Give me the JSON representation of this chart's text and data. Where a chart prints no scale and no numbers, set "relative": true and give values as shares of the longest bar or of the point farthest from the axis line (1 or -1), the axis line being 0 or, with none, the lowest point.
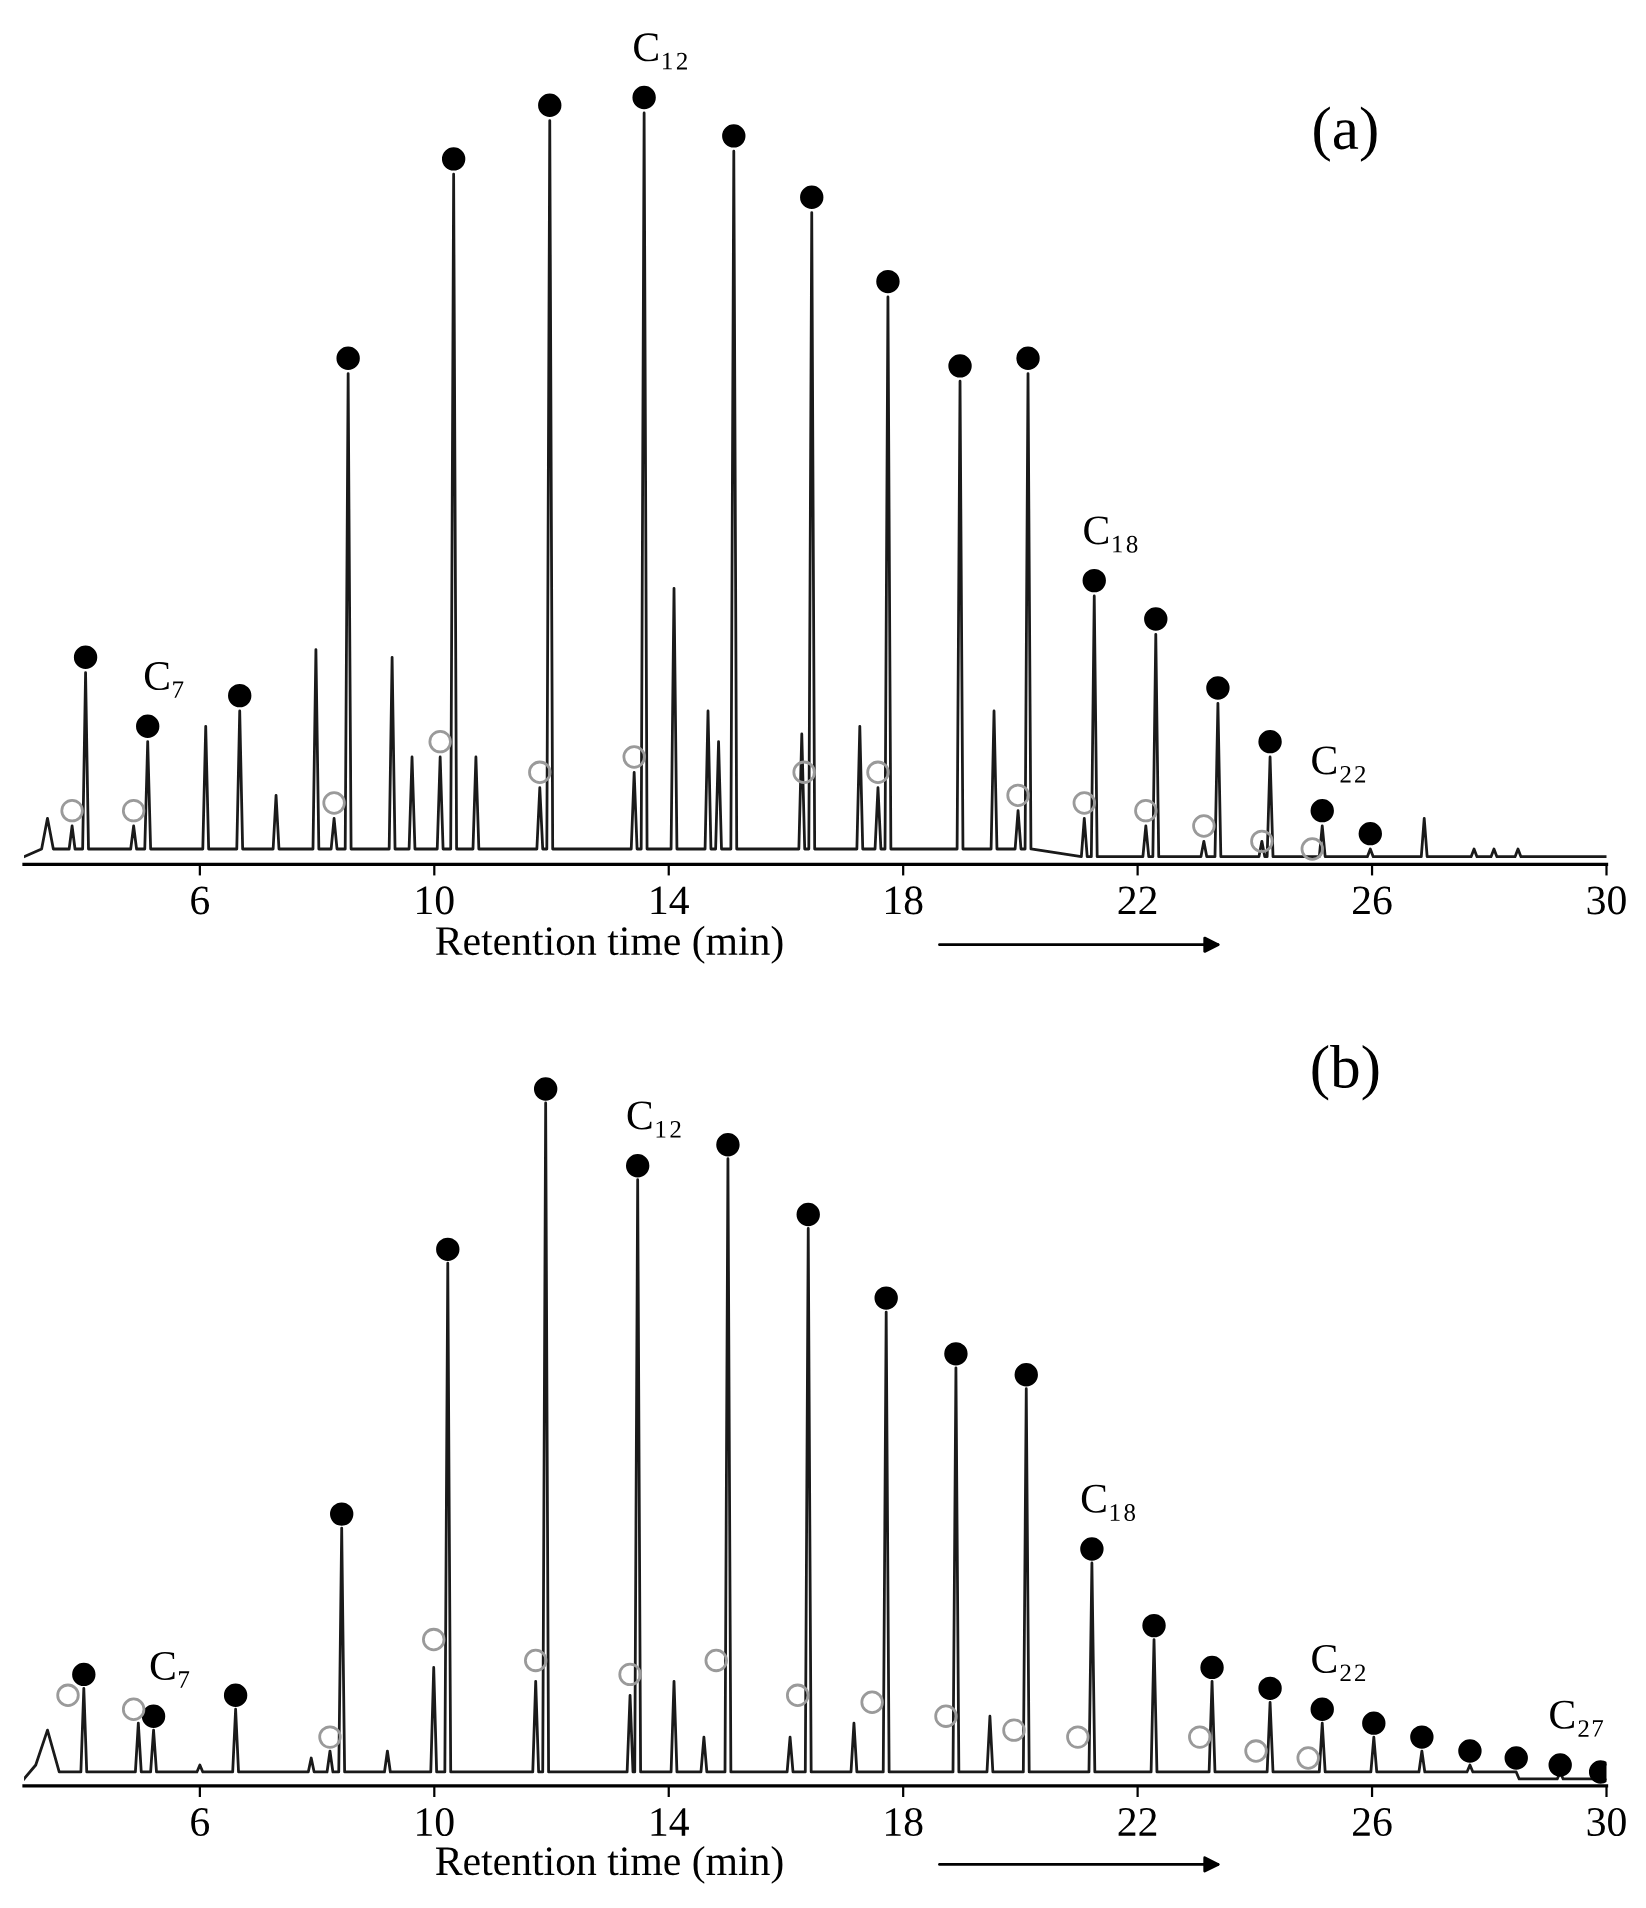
{
  "chart_data": [
    {
      "type": "line",
      "title": "(a)",
      "xlabel": "Retention time (min)",
      "relative": true,
      "xlim": [
        3,
        30
      ],
      "xticks": [
        6,
        10,
        14,
        18,
        22,
        26,
        30
      ],
      "tick_labels": "x",
      "legend": false,
      "grid": false,
      "series": [
        {
          "color": "#1a1a1a",
          "marker": "none",
          "line_style": "solid",
          "x": [
            3.0,
            3.3,
            3.4,
            3.5,
            3.77,
            3.82,
            3.87,
            4.0,
            4.05,
            4.1,
            4.82,
            4.87,
            4.92,
            5.06,
            5.11,
            5.16,
            6.05,
            6.1,
            6.15,
            6.63,
            6.68,
            6.73,
            7.25,
            7.3,
            7.35,
            7.93,
            7.98,
            8.03,
            8.24,
            8.29,
            8.34,
            8.48,
            8.53,
            8.58,
            9.23,
            9.28,
            9.33,
            9.57,
            9.62,
            9.67,
            10.05,
            10.1,
            10.15,
            10.28,
            10.33,
            10.38,
            10.66,
            10.71,
            10.76,
            11.75,
            11.8,
            11.85,
            11.92,
            11.97,
            12.02,
            13.36,
            13.41,
            13.46,
            13.53,
            13.58,
            13.63,
            14.04,
            14.09,
            14.14,
            14.62,
            14.67,
            14.72,
            14.8,
            14.85,
            14.9,
            15.06,
            15.11,
            15.16,
            16.22,
            16.27,
            16.32,
            16.39,
            16.44,
            16.49,
            17.21,
            17.26,
            17.31,
            17.52,
            17.57,
            17.62,
            17.69,
            17.74,
            17.79,
            18.92,
            18.97,
            19.02,
            19.5,
            19.55,
            19.6,
            19.91,
            19.96,
            20.01,
            20.08,
            20.13,
            20.18,
            21.04,
            21.09,
            21.14,
            21.21,
            21.26,
            21.31,
            22.09,
            22.14,
            22.19,
            22.26,
            22.31,
            22.36,
            23.08,
            23.13,
            23.18,
            23.32,
            23.37,
            23.42,
            24.07,
            24.12,
            24.17,
            24.21,
            24.26,
            24.31,
            25.1,
            25.15,
            25.2,
            25.92,
            25.97,
            26.02,
            26.84,
            26.89,
            26.94,
            27.69,
            27.74,
            27.79,
            28.03,
            28.08,
            28.13,
            28.44,
            28.49,
            28.54,
            30.0
          ],
          "values": [
            0.01,
            0.02,
            0.06,
            0.02,
            0.02,
            0.05,
            0.02,
            0.02,
            0.25,
            0.02,
            0.02,
            0.05,
            0.02,
            0.02,
            0.16,
            0.02,
            0.02,
            0.18,
            0.02,
            0.02,
            0.2,
            0.02,
            0.02,
            0.09,
            0.02,
            0.02,
            0.28,
            0.02,
            0.02,
            0.06,
            0.02,
            0.02,
            0.64,
            0.02,
            0.02,
            0.27,
            0.02,
            0.02,
            0.14,
            0.02,
            0.02,
            0.14,
            0.02,
            0.02,
            0.9,
            0.02,
            0.02,
            0.14,
            0.02,
            0.02,
            0.1,
            0.02,
            0.02,
            0.97,
            0.02,
            0.02,
            0.12,
            0.02,
            0.02,
            0.98,
            0.02,
            0.02,
            0.36,
            0.02,
            0.02,
            0.2,
            0.02,
            0.02,
            0.16,
            0.02,
            0.02,
            0.93,
            0.02,
            0.02,
            0.17,
            0.02,
            0.02,
            0.85,
            0.02,
            0.02,
            0.18,
            0.02,
            0.02,
            0.1,
            0.02,
            0.02,
            0.74,
            0.02,
            0.02,
            0.63,
            0.02,
            0.02,
            0.2,
            0.02,
            0.02,
            0.07,
            0.02,
            0.02,
            0.64,
            0.02,
            0.01,
            0.06,
            0.01,
            0.01,
            0.35,
            0.01,
            0.01,
            0.05,
            0.01,
            0.01,
            0.3,
            0.01,
            0.01,
            0.03,
            0.01,
            0.01,
            0.21,
            0.01,
            0.01,
            0.03,
            0.01,
            0.01,
            0.14,
            0.01,
            0.01,
            0.05,
            0.01,
            0.01,
            0.02,
            0.01,
            0.01,
            0.06,
            0.01,
            0.01,
            0.02,
            0.01,
            0.01,
            0.02,
            0.01,
            0.01,
            0.02,
            0.01,
            0.01
          ]
        },
        {
          "type": "scatter",
          "color": "#000000",
          "marker": "circle",
          "x": [
            4.05,
            5.11,
            6.68,
            8.53,
            10.33,
            11.97,
            13.58,
            15.11,
            16.44,
            17.74,
            18.97,
            20.13,
            21.26,
            22.31,
            23.37,
            24.26,
            25.15,
            25.97
          ],
          "values": [
            0.27,
            0.18,
            0.22,
            0.66,
            0.92,
            0.99,
            1.0,
            0.95,
            0.87,
            0.76,
            0.65,
            0.66,
            0.37,
            0.32,
            0.23,
            0.16,
            0.07,
            0.04
          ]
        },
        {
          "type": "scatter",
          "color": "#9a9a9a",
          "marker": "circle",
          "x": [
            3.82,
            4.87,
            8.29,
            10.1,
            11.8,
            13.41,
            16.31,
            17.57,
            19.96,
            21.09,
            22.14,
            23.13,
            24.12,
            24.98
          ],
          "values": [
            0.07,
            0.07,
            0.08,
            0.16,
            0.12,
            0.14,
            0.12,
            0.12,
            0.09,
            0.08,
            0.07,
            0.05,
            0.03,
            0.02
          ]
        }
      ],
      "annotations": [
        {
          "text": "C₇",
          "x": 5.11,
          "y": 0.18
        },
        {
          "text": "C₁₂",
          "x": 13.58,
          "y": 1.0
        },
        {
          "text": "C₁₈",
          "x": 21.26,
          "y": 0.37
        },
        {
          "text": "C₂₂",
          "x": 25.15,
          "y": 0.07
        }
      ]
    },
    {
      "type": "line",
      "title": "(b)",
      "xlabel": "Retention time (min)",
      "relative": true,
      "xlim": [
        3,
        30
      ],
      "xticks": [
        6,
        10,
        14,
        18,
        22,
        26,
        30
      ],
      "tick_labels": "x",
      "legend": false,
      "grid": false,
      "series": [
        {
          "color": "#1a1a1a",
          "marker": "none",
          "line_style": "solid",
          "x": [
            3.0,
            3.2,
            3.4,
            3.6,
            3.97,
            4.02,
            4.07,
            4.9,
            4.95,
            5.0,
            5.16,
            5.21,
            5.26,
            5.95,
            6.0,
            6.05,
            6.56,
            6.61,
            6.66,
            7.85,
            7.9,
            7.95,
            8.17,
            8.22,
            8.27,
            8.37,
            8.42,
            8.47,
            9.15,
            9.2,
            9.25,
            9.94,
            9.99,
            10.04,
            10.18,
            10.23,
            10.28,
            11.68,
            11.73,
            11.78,
            11.85,
            11.9,
            11.95,
            13.29,
            13.34,
            13.39,
            13.42,
            13.47,
            13.52,
            14.04,
            14.09,
            14.14,
            14.55,
            14.6,
            14.65,
            14.96,
            15.01,
            15.06,
            16.02,
            16.07,
            16.12,
            16.33,
            16.38,
            16.43,
            17.11,
            17.16,
            17.21,
            17.66,
            17.71,
            17.76,
            18.85,
            18.9,
            18.95,
            19.43,
            19.48,
            19.53,
            20.05,
            20.1,
            20.15,
            21.17,
            21.22,
            21.27,
            22.23,
            22.28,
            22.33,
            23.22,
            23.27,
            23.32,
            24.21,
            24.26,
            24.31,
            25.1,
            25.15,
            25.2,
            25.98,
            26.03,
            26.08,
            26.8,
            26.85,
            26.9,
            27.62,
            27.67,
            27.72,
            28.41,
            28.46,
            28.51,
            29.16,
            29.21,
            29.26,
            29.85,
            29.9,
            29.95
          ],
          "values": [
            0.01,
            0.03,
            0.08,
            0.02,
            0.02,
            0.14,
            0.02,
            0.02,
            0.09,
            0.02,
            0.02,
            0.08,
            0.02,
            0.02,
            0.03,
            0.02,
            0.02,
            0.11,
            0.02,
            0.02,
            0.04,
            0.02,
            0.02,
            0.05,
            0.02,
            0.02,
            0.37,
            0.02,
            0.02,
            0.05,
            0.02,
            0.02,
            0.17,
            0.02,
            0.02,
            0.75,
            0.02,
            0.02,
            0.15,
            0.02,
            0.02,
            0.98,
            0.02,
            0.02,
            0.13,
            0.02,
            0.02,
            0.87,
            0.02,
            0.02,
            0.15,
            0.02,
            0.02,
            0.07,
            0.02,
            0.02,
            0.9,
            0.02,
            0.02,
            0.07,
            0.02,
            0.02,
            0.8,
            0.02,
            0.02,
            0.09,
            0.02,
            0.02,
            0.68,
            0.02,
            0.02,
            0.6,
            0.02,
            0.02,
            0.1,
            0.02,
            0.02,
            0.57,
            0.02,
            0.02,
            0.32,
            0.02,
            0.02,
            0.21,
            0.02,
            0.02,
            0.15,
            0.02,
            0.02,
            0.12,
            0.02,
            0.02,
            0.09,
            0.02,
            0.02,
            0.07,
            0.02,
            0.02,
            0.05,
            0.02,
            0.02,
            0.03,
            0.02,
            0.02,
            0.02,
            0.01,
            0.01,
            0.02,
            0.01,
            0.01,
            0.02,
            0.01
          ]
        },
        {
          "type": "scatter",
          "color": "#000000",
          "marker": "circle",
          "x": [
            4.02,
            5.21,
            6.61,
            8.42,
            10.23,
            11.9,
            13.47,
            15.01,
            16.38,
            17.71,
            18.9,
            20.1,
            21.22,
            22.28,
            23.27,
            24.26,
            25.15,
            26.03,
            26.85,
            27.67,
            28.46,
            29.21,
            29.9
          ],
          "values": [
            0.16,
            0.1,
            0.13,
            0.39,
            0.77,
            1.0,
            0.89,
            0.92,
            0.82,
            0.7,
            0.62,
            0.59,
            0.34,
            0.23,
            0.17,
            0.14,
            0.11,
            0.09,
            0.07,
            0.05,
            0.04,
            0.03,
            0.02
          ]
        },
        {
          "type": "scatter",
          "color": "#9a9a9a",
          "marker": "circle",
          "x": [
            3.75,
            4.87,
            8.22,
            9.99,
            11.73,
            13.34,
            14.81,
            16.2,
            17.47,
            18.73,
            19.89,
            20.98,
            23.06,
            24.02,
            24.91
          ],
          "values": [
            0.13,
            0.11,
            0.07,
            0.21,
            0.18,
            0.16,
            0.18,
            0.13,
            0.12,
            0.1,
            0.08,
            0.07,
            0.07,
            0.05,
            0.04
          ]
        }
      ],
      "annotations": [
        {
          "text": "C₇",
          "x": 5.21,
          "y": 0.1
        },
        {
          "text": "C₁₂",
          "x": 13.47,
          "y": 0.89
        },
        {
          "text": "C₁₈",
          "x": 21.22,
          "y": 0.34
        },
        {
          "text": "C₂₂",
          "x": 25.15,
          "y": 0.11
        },
        {
          "text": "C₂₇",
          "x": 29.21,
          "y": 0.03
        }
      ]
    }
  ]
}
